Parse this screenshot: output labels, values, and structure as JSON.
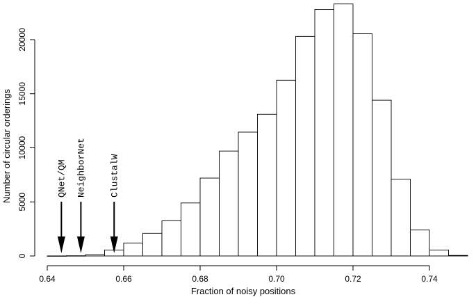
{
  "chart_data": {
    "type": "bar",
    "title": "",
    "xlabel": "Fraction of noisy positions",
    "ylabel": "Number of circular orderings",
    "xlim": [
      0.64,
      0.75
    ],
    "ylim": [
      0,
      23000
    ],
    "grid": false,
    "x_ticks": [
      {
        "value": 0.64,
        "label": "0.64"
      },
      {
        "value": 0.66,
        "label": "0.66"
      },
      {
        "value": 0.68,
        "label": "0.68"
      },
      {
        "value": 0.7,
        "label": "0.70"
      },
      {
        "value": 0.72,
        "label": "0.72"
      },
      {
        "value": 0.74,
        "label": "0.74"
      }
    ],
    "y_ticks": [
      {
        "value": 0,
        "label": "0"
      },
      {
        "value": 5000,
        "label": "5000"
      },
      {
        "value": 10000,
        "label": "10000"
      },
      {
        "value": 15000,
        "label": "15000"
      },
      {
        "value": 20000,
        "label": "20000"
      }
    ],
    "bin_width": 0.005,
    "bin_starts": [
      0.64,
      0.645,
      0.65,
      0.655,
      0.66,
      0.665,
      0.67,
      0.675,
      0.68,
      0.685,
      0.69,
      0.695,
      0.7,
      0.705,
      0.71,
      0.715,
      0.72,
      0.725,
      0.73,
      0.735,
      0.74,
      0.745
    ],
    "values": [
      5,
      20,
      120,
      550,
      1200,
      2100,
      3250,
      4900,
      7200,
      9700,
      11450,
      13100,
      16250,
      20300,
      22800,
      23300,
      20550,
      14400,
      7100,
      2400,
      550,
      50
    ],
    "annotations": [
      {
        "label": "QNet/QM",
        "x": 0.6437
      },
      {
        "label": "NeighborNet",
        "x": 0.6488
      },
      {
        "label": "ClustalW",
        "x": 0.6575
      }
    ]
  }
}
